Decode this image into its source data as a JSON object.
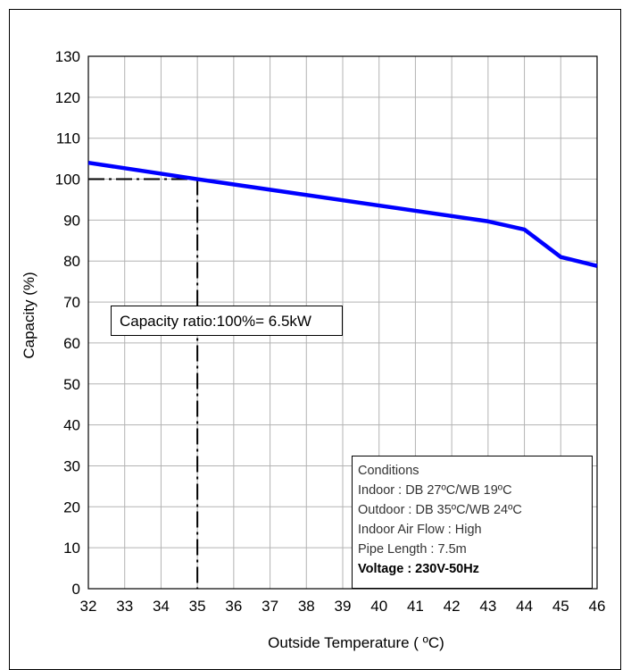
{
  "chart_data": {
    "type": "line",
    "xlabel": "Outside Temperature ( ºC)",
    "ylabel": "Capacity (%)",
    "xlim": [
      32,
      46
    ],
    "ylim": [
      0,
      130
    ],
    "x_ticks": [
      "32",
      "33",
      "34",
      "35",
      "36",
      "37",
      "38",
      "39",
      "40",
      "41",
      "42",
      "43",
      "44",
      "45",
      "46"
    ],
    "y_ticks": [
      "0",
      "10",
      "20",
      "30",
      "40",
      "50",
      "60",
      "70",
      "80",
      "90",
      "100",
      "110",
      "120",
      "130"
    ],
    "grid": true,
    "line_color": "#0000ff",
    "series": [
      {
        "x": [
          32,
          35,
          43,
          44,
          45,
          46
        ],
        "values": [
          104,
          100,
          89.7,
          87.7,
          81,
          78.8
        ]
      }
    ],
    "reference": {
      "x": 35,
      "y": 100
    },
    "annotation": "Capacity ratio:100%= 6.5kW",
    "conditions": {
      "title": "Conditions",
      "lines": [
        "Indoor : DB 27ºC/WB 19ºC",
        "Outdoor : DB 35ºC/WB 24ºC",
        "Indoor Air Flow : High",
        "Pipe Length : 7.5m"
      ],
      "voltage": "Voltage : 230V-50Hz"
    }
  }
}
